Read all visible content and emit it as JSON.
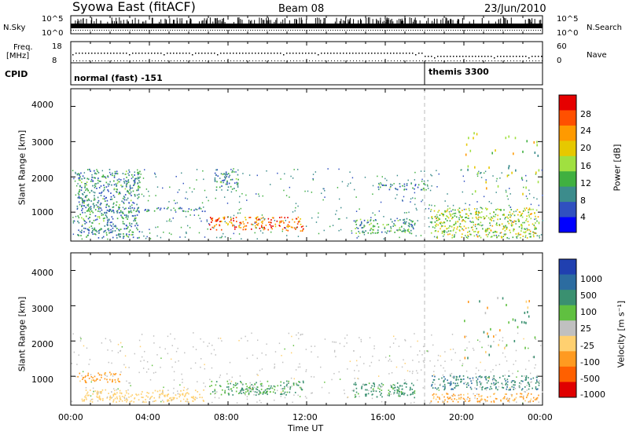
{
  "header": {
    "station": "Syowa East (fitACF)",
    "beam": "Beam 08",
    "date": "23/Jun/2010"
  },
  "top_panel": {
    "left_label": "N.Sky",
    "right_label": "N.Search",
    "y_ticks": [
      "10^5",
      "10^0"
    ],
    "right_ticks": [
      "10^5",
      "10^0"
    ]
  },
  "freq_panel": {
    "left_label_1": "Freq.",
    "left_label_2": "[MHz]",
    "right_label": "Nave",
    "y_ticks": [
      "18",
      "8"
    ],
    "right_ticks": [
      "60",
      "0"
    ]
  },
  "cpid_panel": {
    "label": "CPID",
    "mode_1": "normal (fast) -151",
    "mode_2": "themis 3300"
  },
  "power_panel": {
    "ylabel": "Slant Range [km]",
    "y_ticks": [
      "4000",
      "3000",
      "2000",
      "1000"
    ],
    "colorbar_label": "Power [dB]",
    "colorbar_ticks": [
      "28",
      "24",
      "20",
      "16",
      "12",
      "8",
      "4"
    ],
    "colorbar_colors": [
      "#e60000",
      "#ff5000",
      "#ff9a00",
      "#e6c800",
      "#a0e040",
      "#40b040",
      "#3c8c8c",
      "#3050c0",
      "#0000ff"
    ]
  },
  "velocity_panel": {
    "ylabel": "Slant Range [km]",
    "y_ticks": [
      "4000",
      "3000",
      "2000",
      "1000"
    ],
    "colorbar_label": "Velocity [m s⁻¹]",
    "colorbar_ticks": [
      "1000",
      "500",
      "100",
      "25",
      "-25",
      "-100",
      "-500",
      "-1000"
    ],
    "colorbar_colors": [
      "#2040b0",
      "#2c6ca0",
      "#3a9070",
      "#60c040",
      "#c0c0c0",
      "#ffd070",
      "#ff9a20",
      "#ff6000",
      "#e00000"
    ]
  },
  "x_axis": {
    "ticks": [
      "00:00",
      "04:00",
      "08:00",
      "12:00",
      "16:00",
      "20:00",
      "00:00"
    ],
    "label": "Time UT"
  },
  "chart_data": {
    "type": "heatmap",
    "xlim_hours": [
      0,
      24
    ],
    "ylim_km": [
      180,
      4500
    ],
    "power_echo_regions": [
      {
        "t0": 0.3,
        "t1": 3.5,
        "r0": 250,
        "r1": 2200,
        "dB": 8
      },
      {
        "t0": 0.5,
        "t1": 6.8,
        "r0": 1000,
        "r1": 1120,
        "dB": 6
      },
      {
        "t0": 7.0,
        "t1": 11.8,
        "r0": 450,
        "r1": 850,
        "dB": 24
      },
      {
        "t0": 7.3,
        "t1": 8.5,
        "r0": 1600,
        "r1": 2200,
        "dB": 8
      },
      {
        "t0": 14.3,
        "t1": 17.5,
        "r0": 380,
        "r1": 800,
        "dB": 10
      },
      {
        "t0": 15.5,
        "t1": 18.0,
        "r0": 1600,
        "r1": 1800,
        "dB": 8
      },
      {
        "t0": 18.3,
        "t1": 23.8,
        "r0": 250,
        "r1": 1100,
        "dB": 16
      }
    ],
    "velocity_echo_regions": [
      {
        "t0": 0.3,
        "t1": 2.5,
        "r0": 800,
        "r1": 1100,
        "velocity": -200
      },
      {
        "t0": 0.5,
        "t1": 6.8,
        "r0": 250,
        "r1": 600,
        "velocity": -60
      },
      {
        "t0": 7.0,
        "t1": 11.8,
        "r0": 450,
        "r1": 850,
        "velocity": 100
      },
      {
        "t0": 14.3,
        "t1": 17.5,
        "r0": 380,
        "r1": 800,
        "velocity": 150
      },
      {
        "t0": 18.3,
        "t1": 23.8,
        "r0": 600,
        "r1": 1000,
        "velocity": 400
      },
      {
        "t0": 18.3,
        "t1": 23.8,
        "r0": 250,
        "r1": 500,
        "velocity": -150
      }
    ],
    "mode_change_hour": 18.0
  }
}
